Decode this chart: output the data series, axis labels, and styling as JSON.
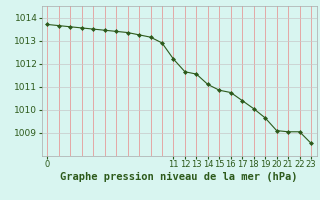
{
  "x": [
    0,
    1,
    2,
    3,
    4,
    5,
    6,
    7,
    8,
    9,
    10,
    11,
    12,
    13,
    14,
    15,
    16,
    17,
    18,
    19,
    20,
    21,
    22,
    23
  ],
  "y": [
    1013.7,
    1013.65,
    1013.6,
    1013.55,
    1013.5,
    1013.45,
    1013.4,
    1013.35,
    1013.25,
    1013.15,
    1012.9,
    1012.2,
    1011.65,
    1011.55,
    1011.1,
    1010.85,
    1010.75,
    1010.4,
    1010.05,
    1009.65,
    1009.1,
    1009.05,
    1009.05,
    1008.55
  ],
  "xlim": [
    -0.5,
    23.5
  ],
  "ylim": [
    1008.0,
    1014.5
  ],
  "yticks": [
    1009,
    1010,
    1011,
    1012,
    1013,
    1014
  ],
  "xticks": [
    0,
    11,
    12,
    13,
    14,
    15,
    16,
    17,
    18,
    19,
    20,
    21,
    22,
    23
  ],
  "xlabel": "Graphe pression niveau de la mer (hPa)",
  "line_color": "#2d5a1b",
  "marker": "D",
  "marker_size": 2,
  "bg_color": "#d8f5f0",
  "grid_color_v": "#e88888",
  "grid_color_h": "#c8c8c8",
  "tick_color": "#2d5a1b",
  "label_color": "#2d5a1b",
  "xlabel_fontsize": 7.5,
  "axis_fontsize": 6.5
}
